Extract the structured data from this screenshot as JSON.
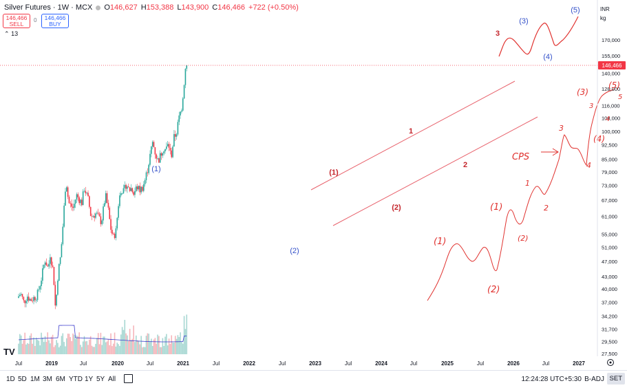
{
  "header": {
    "symbol_title": "Silver Futures · 1W · MCX",
    "ohlc": [
      {
        "label": "O",
        "value": "146,627"
      },
      {
        "label": "H",
        "value": "153,388"
      },
      {
        "label": "L",
        "value": "143,900"
      },
      {
        "label": "C",
        "value": "146,466"
      }
    ],
    "change": "+722 (+0.50%)"
  },
  "trade": {
    "sell_price": "146,466",
    "sell_label": "SELL",
    "spread": "0",
    "buy_price": "146,466",
    "buy_label": "BUY"
  },
  "indicator_count": "13",
  "currency": "INR",
  "unit": "kg",
  "logo_text": "TV",
  "toolbar": {
    "timeframes": [
      "1D",
      "5D",
      "1M",
      "3M",
      "6M",
      "YTD",
      "1Y",
      "5Y",
      "All"
    ],
    "clock": "12:24:28 UTC+5:30",
    "adjust": "B-ADJ",
    "session": "SET"
  },
  "colors": {
    "up": "#26a69a",
    "down": "#f23645",
    "annotation_red": "#e0312e",
    "annotation_blue": "#3350c9",
    "volume_ma": "#3d3dcc"
  },
  "chart_data": {
    "type": "candlestick",
    "title": "Silver Futures · 1W · MCX",
    "y_axis_ticks": [
      27500,
      29500,
      31700,
      34200,
      37000,
      40000,
      43000,
      47000,
      51000,
      55000,
      61000,
      67000,
      73000,
      79000,
      85000,
      92500,
      100000,
      108000,
      116000,
      128000,
      140000,
      155000,
      170000
    ],
    "y_axis_tick_labels": [
      "27,500",
      "29,500",
      "31,700",
      "34,200",
      "37,000",
      "40,000",
      "43,000",
      "47,000",
      "51,000",
      "55,000",
      "61,000",
      "67,000",
      "73,000",
      "79,000",
      "85,000",
      "92,500",
      "100,000",
      "108,000",
      "116,000",
      "128,000",
      "140,000",
      "155,000",
      "170,000"
    ],
    "x_axis_labels": [
      "Jul",
      "2019",
      "Jul",
      "2020",
      "Jul",
      "2021",
      "Jul",
      "2022",
      "Jul",
      "2023",
      "Jul",
      "2024",
      "Jul",
      "2025",
      "Jul",
      "2026",
      "Jul",
      "2027"
    ],
    "last_price": 146466,
    "last_price_label": "146,466",
    "price_path": [
      {
        "t": 0,
        "p": 38000
      },
      {
        "t": 0.05,
        "p": 39000
      },
      {
        "t": 0.1,
        "p": 37000
      },
      {
        "t": 0.15,
        "p": 38500
      },
      {
        "t": 0.2,
        "p": 37500
      },
      {
        "t": 0.3,
        "p": 38500
      },
      {
        "t": 0.36,
        "p": 42000
      },
      {
        "t": 0.42,
        "p": 47500
      },
      {
        "t": 0.47,
        "p": 45000
      },
      {
        "t": 0.5,
        "p": 49000
      },
      {
        "t": 0.55,
        "p": 44000
      },
      {
        "t": 0.58,
        "p": 35500
      },
      {
        "t": 0.62,
        "p": 44000
      },
      {
        "t": 0.66,
        "p": 48500
      },
      {
        "t": 0.7,
        "p": 60000
      },
      {
        "t": 0.74,
        "p": 76000
      },
      {
        "t": 0.78,
        "p": 66000
      },
      {
        "t": 0.85,
        "p": 64000
      },
      {
        "t": 0.9,
        "p": 69000
      },
      {
        "t": 0.98,
        "p": 66000
      },
      {
        "t": 1.02,
        "p": 72000
      },
      {
        "t": 1.08,
        "p": 67000
      },
      {
        "t": 1.12,
        "p": 61000
      },
      {
        "t": 1.2,
        "p": 62000
      },
      {
        "t": 1.28,
        "p": 59000
      },
      {
        "t": 1.3,
        "p": 62000
      },
      {
        "t": 1.34,
        "p": 69000
      },
      {
        "t": 1.38,
        "p": 64000
      },
      {
        "t": 1.42,
        "p": 57000
      },
      {
        "t": 1.46,
        "p": 54000
      },
      {
        "t": 1.5,
        "p": 56000
      },
      {
        "t": 1.54,
        "p": 66000
      },
      {
        "t": 1.58,
        "p": 72000
      },
      {
        "t": 1.62,
        "p": 70000
      },
      {
        "t": 1.66,
        "p": 74000
      },
      {
        "t": 1.7,
        "p": 71000
      },
      {
        "t": 1.74,
        "p": 72000
      },
      {
        "t": 1.78,
        "p": 70000
      },
      {
        "t": 1.82,
        "p": 72500
      },
      {
        "t": 1.86,
        "p": 71000
      },
      {
        "t": 1.9,
        "p": 72000
      },
      {
        "t": 1.94,
        "p": 75000
      },
      {
        "t": 1.98,
        "p": 80000
      },
      {
        "t": 2.02,
        "p": 87000
      },
      {
        "t": 2.06,
        "p": 94000
      },
      {
        "t": 2.1,
        "p": 88000
      },
      {
        "t": 2.14,
        "p": 84000
      },
      {
        "t": 2.18,
        "p": 87000
      },
      {
        "t": 2.22,
        "p": 91000
      },
      {
        "t": 2.26,
        "p": 90000
      },
      {
        "t": 2.3,
        "p": 93000
      },
      {
        "t": 2.34,
        "p": 86000
      },
      {
        "t": 2.38,
        "p": 96000
      },
      {
        "t": 2.42,
        "p": 99000
      },
      {
        "t": 2.46,
        "p": 108000
      },
      {
        "t": 2.5,
        "p": 115000
      },
      {
        "t": 2.53,
        "p": 128000
      },
      {
        "t": 2.56,
        "p": 146466
      }
    ],
    "wave_labels_chart": [
      {
        "text": "(1)",
        "color": "blue"
      },
      {
        "text": "(2)",
        "color": "blue"
      },
      {
        "text": "(1)",
        "color": "red"
      },
      {
        "text": "(2)",
        "color": "red"
      },
      {
        "text": "1",
        "color": "red"
      },
      {
        "text": "2",
        "color": "red"
      },
      {
        "text": "3",
        "color": "red"
      },
      {
        "text": "(3)",
        "color": "blue"
      },
      {
        "text": "(4)",
        "color": "blue"
      },
      {
        "text": "(5)",
        "color": "blue"
      }
    ],
    "handwritten_notes": [
      "(1)",
      "(2)",
      "(1)",
      "(2)",
      "1",
      "2",
      "3",
      "4",
      "CPS",
      "(3)",
      "(5)",
      "(4)",
      "3",
      "5",
      "4"
    ]
  }
}
